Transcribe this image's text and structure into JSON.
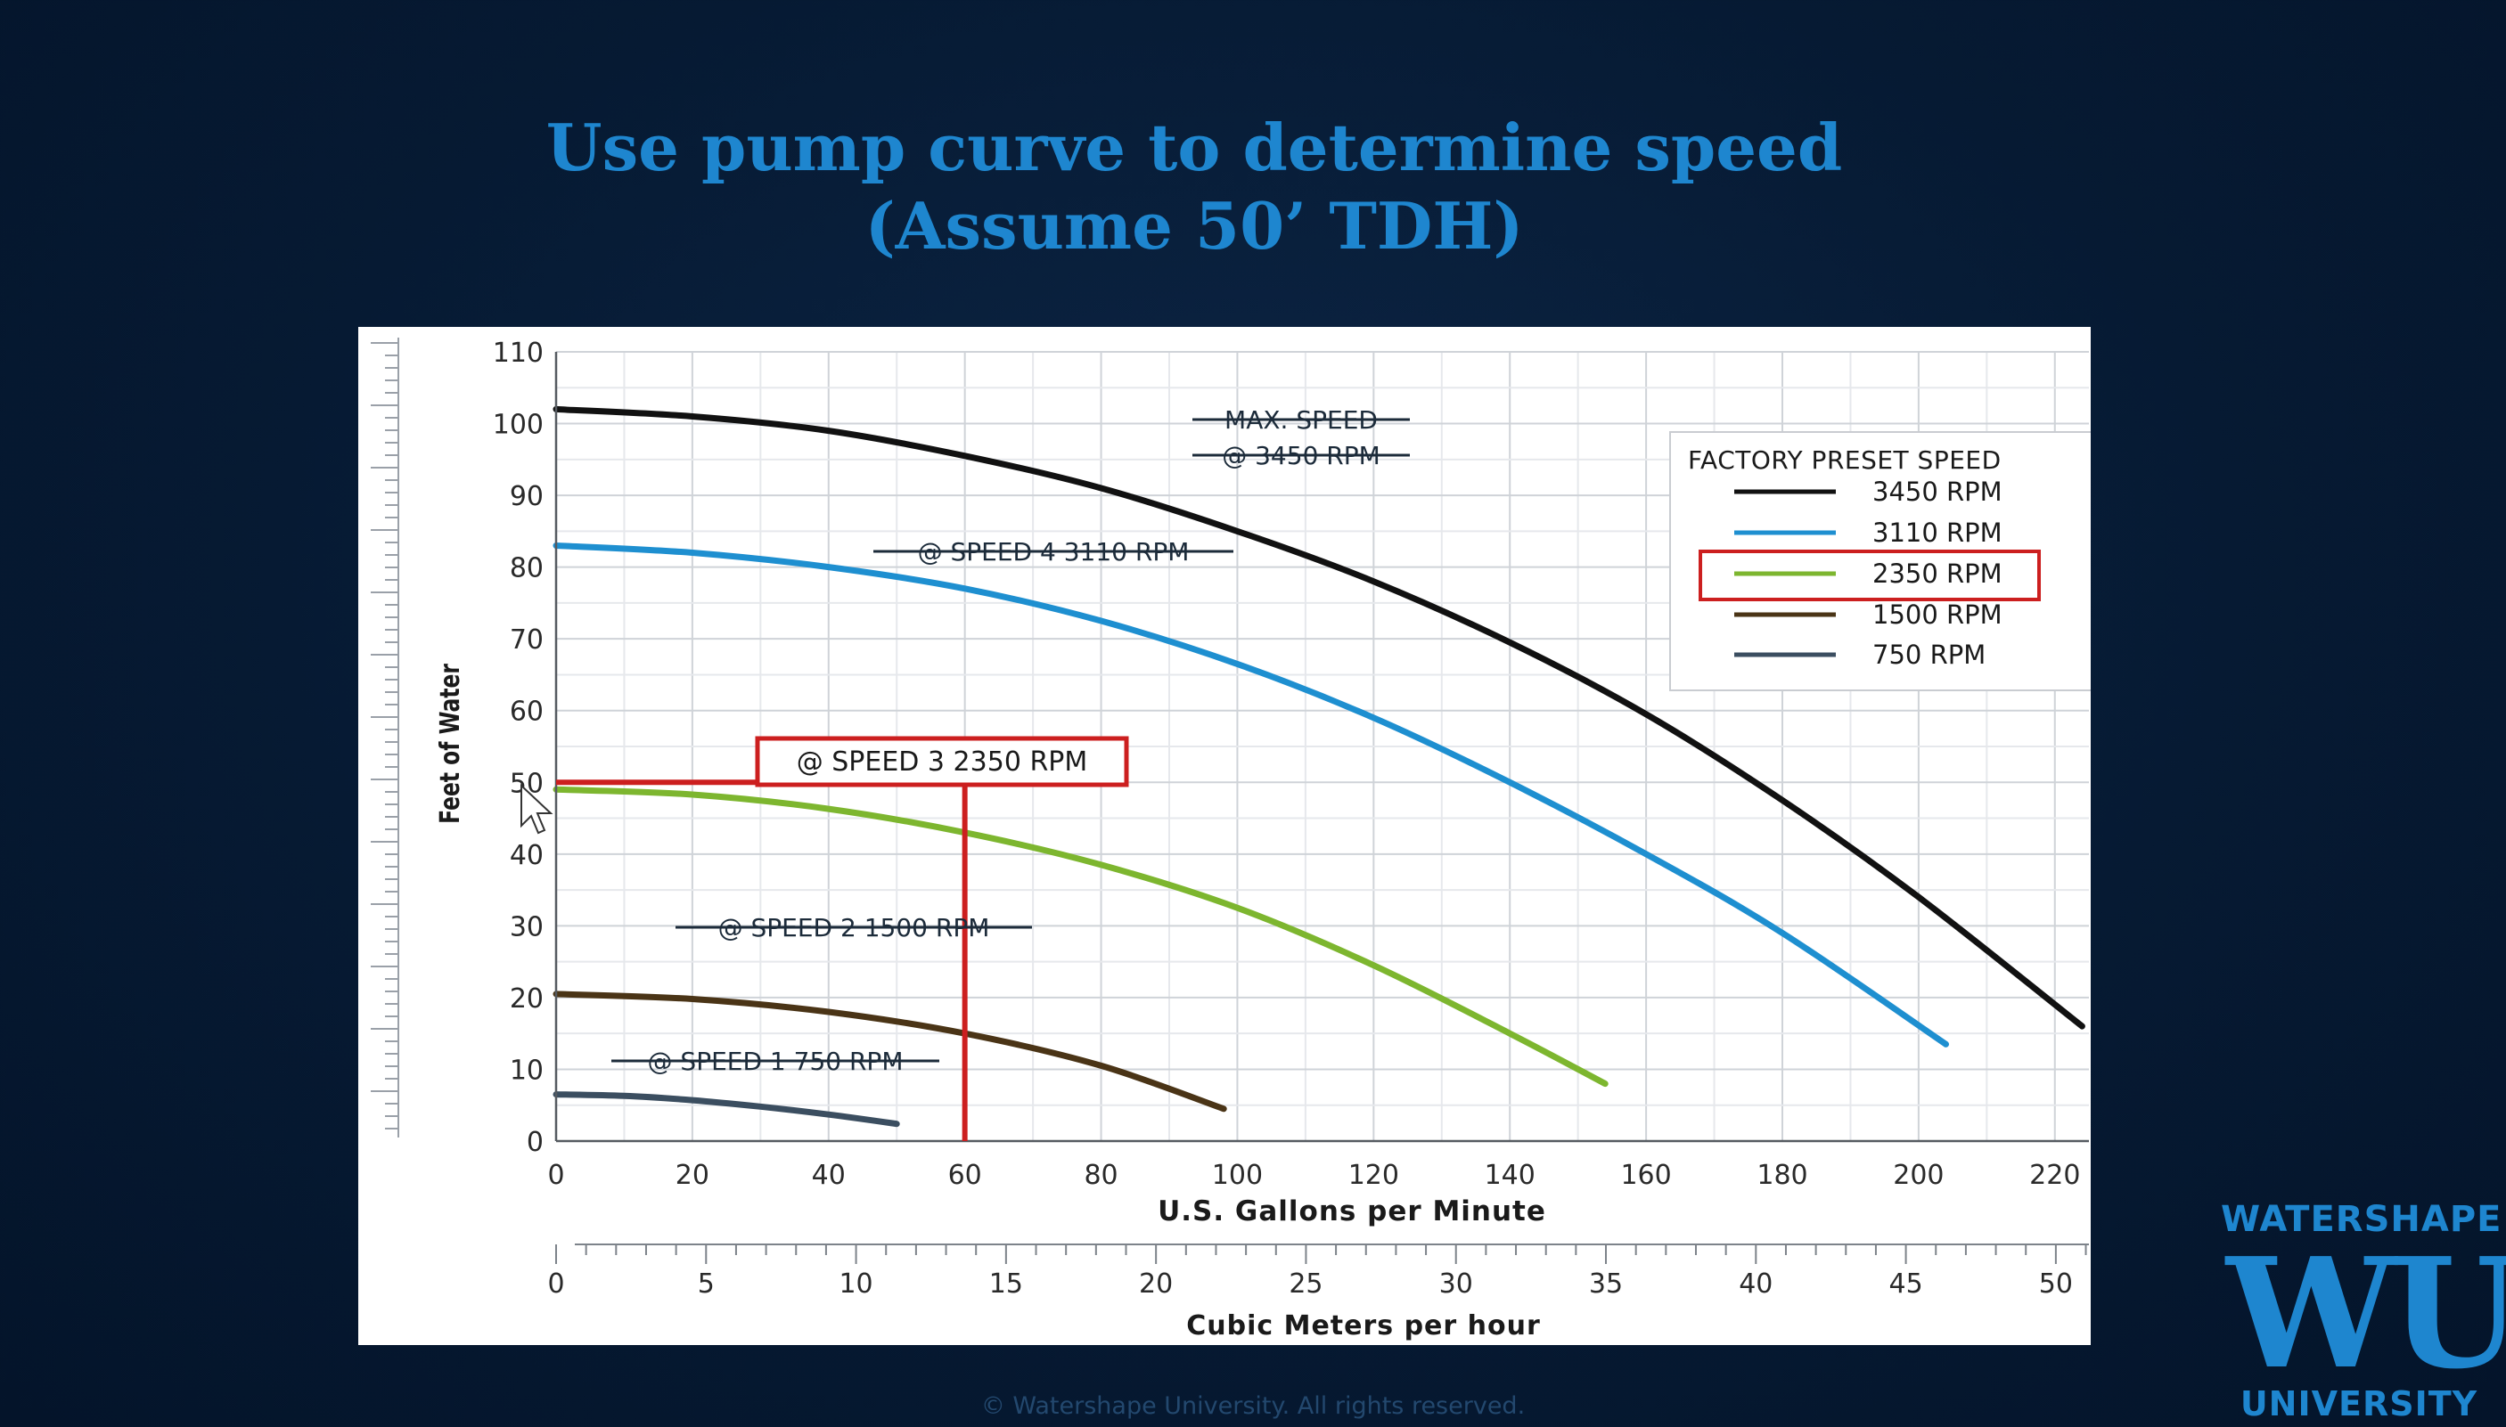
{
  "slide": {
    "title_line1": "Use pump curve to determine speed",
    "title_line2": "(Assume 50’ TDH)",
    "copyright": "© Watershape University. All rights reserved."
  },
  "logo": {
    "top": "WATERSHAPE",
    "mark": "WU",
    "bottom": "UNIVERSITY"
  },
  "colors": {
    "background": "#061a33",
    "title": "#1e86cf",
    "highlight": "#cc1f1f",
    "rpm3450": "#111111",
    "rpm3110": "#1e8fd0",
    "rpm2350": "#7db62f",
    "rpm1500": "#4a3416",
    "rpm750": "#3b4e60"
  },
  "chart_data": {
    "type": "line",
    "xlabel": "U.S. Gallons per Minute",
    "ylabel": "Feet of Water",
    "secondary_xlabel": "Cubic Meters per hour",
    "xlim": [
      0,
      225
    ],
    "ylim": [
      0,
      110
    ],
    "xticks": [
      0,
      20,
      40,
      60,
      80,
      100,
      120,
      140,
      160,
      180,
      200,
      220
    ],
    "yticks": [
      0,
      10,
      20,
      30,
      40,
      50,
      60,
      70,
      80,
      90,
      100,
      110
    ],
    "secondary_xticks": [
      0,
      5,
      10,
      15,
      20,
      25,
      30,
      35,
      40,
      45,
      50
    ],
    "grid": true,
    "legend_title": "FACTORY PRESET SPEED",
    "legend_position": "top-right",
    "series": [
      {
        "name": "3450 RPM",
        "color": "#111111",
        "x": [
          0,
          20,
          40,
          60,
          80,
          100,
          120,
          140,
          160,
          180,
          200,
          224
        ],
        "y": [
          102,
          101,
          99,
          95.5,
          91,
          85,
          78,
          69.5,
          59.5,
          47.5,
          34,
          16
        ]
      },
      {
        "name": "3110 RPM",
        "color": "#1e8fd0",
        "x": [
          0,
          20,
          40,
          60,
          80,
          100,
          120,
          140,
          160,
          180,
          204
        ],
        "y": [
          83,
          82,
          80,
          77,
          72.5,
          66.5,
          59,
          50,
          40,
          29,
          13.5
        ]
      },
      {
        "name": "2350 RPM",
        "color": "#7db62f",
        "x": [
          0,
          20,
          40,
          60,
          80,
          100,
          120,
          140,
          154
        ],
        "y": [
          49,
          48.3,
          46.3,
          43,
          38.5,
          32.5,
          24.5,
          15,
          8
        ]
      },
      {
        "name": "1500 RPM",
        "color": "#4a3416",
        "x": [
          0,
          20,
          40,
          60,
          80,
          98
        ],
        "y": [
          20.5,
          19.8,
          18,
          15,
          10.5,
          4.5
        ]
      },
      {
        "name": "750 RPM",
        "color": "#3b4e60",
        "x": [
          0,
          10,
          20,
          30,
          40,
          50
        ],
        "y": [
          6.5,
          6.3,
          5.7,
          4.8,
          3.7,
          2.4
        ]
      }
    ],
    "annotations": [
      {
        "text": "MAX. SPEED",
        "struck": true
      },
      {
        "text": "@ 3450 RPM",
        "struck": true
      },
      {
        "text": "@ SPEED 4 3110 RPM",
        "struck": true
      },
      {
        "text": "@ SPEED 3 2350 RPM",
        "struck": false,
        "boxed": true
      },
      {
        "text": "@ SPEED 2 1500 RPM",
        "struck": true
      },
      {
        "text": "@ SPEED 1 750 RPM",
        "struck": true
      }
    ],
    "highlight": {
      "head_ft": 50,
      "flow_gpm": 60,
      "series": "2350 RPM"
    }
  }
}
